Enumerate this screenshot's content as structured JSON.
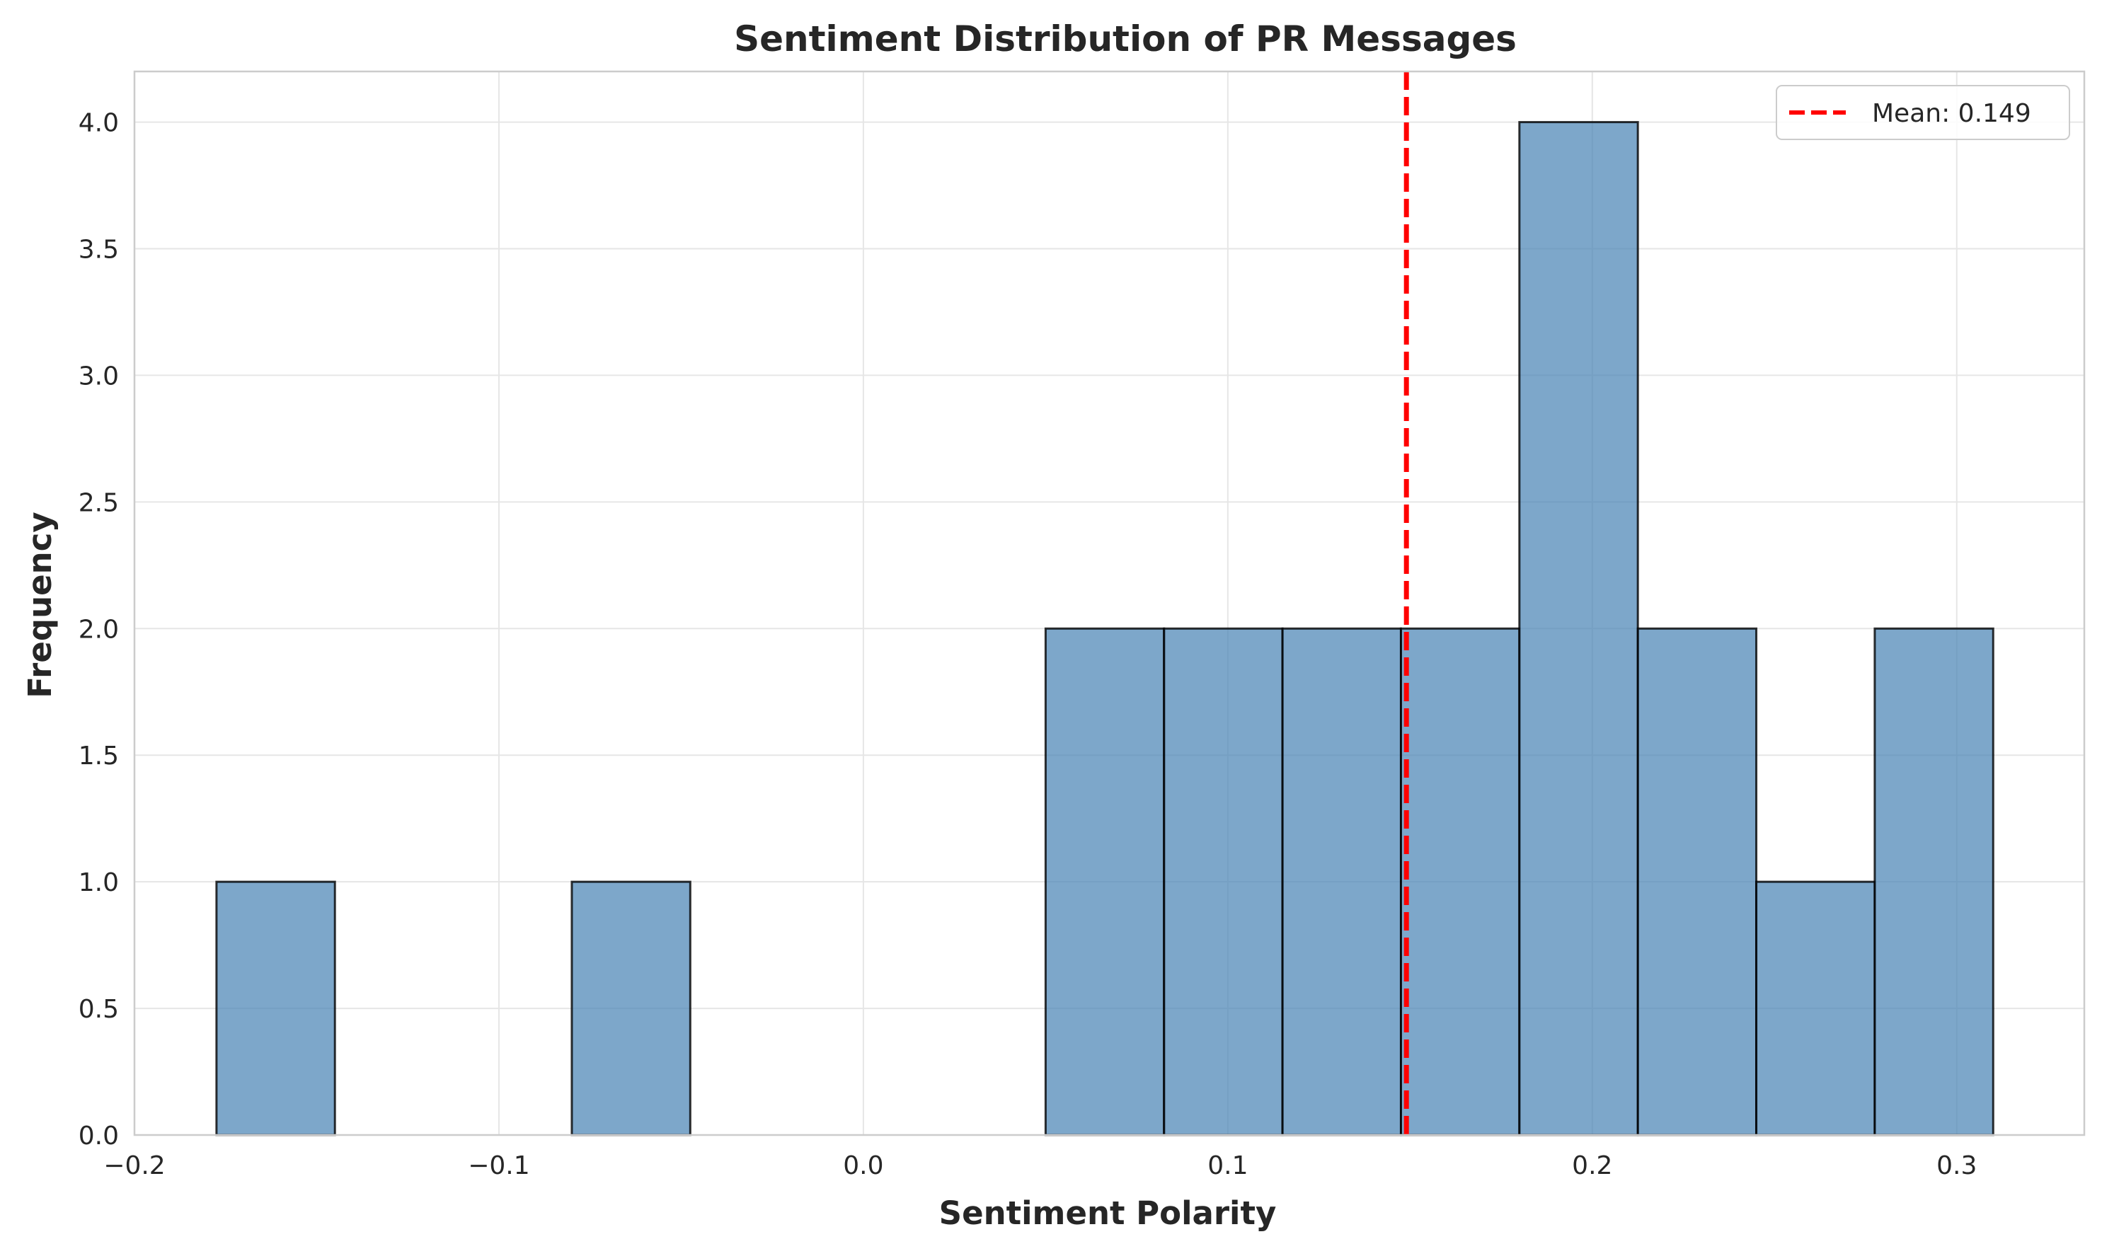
{
  "chart_data": {
    "type": "bar",
    "title": "Sentiment Distribution of PR Messages",
    "xlabel": "Sentiment Polarity",
    "ylabel": "Frequency",
    "xlim": [
      -0.2,
      0.335
    ],
    "ylim": [
      0,
      4.2
    ],
    "x_ticks": [
      -0.2,
      -0.1,
      0.0,
      0.1,
      0.2,
      0.3
    ],
    "x_tick_labels": [
      "−0.2",
      "−0.1",
      "0.0",
      "0.1",
      "0.2",
      "0.3"
    ],
    "y_ticks": [
      0,
      0.5,
      1.0,
      1.5,
      2.0,
      2.5,
      3.0,
      3.5,
      4.0
    ],
    "y_tick_labels": [
      "0.0",
      "0.5",
      "1.0",
      "1.5",
      "2.0",
      "2.5",
      "3.0",
      "3.5",
      "4.0"
    ],
    "bin_edges": [
      -0.1775,
      -0.145,
      -0.1125,
      -0.08,
      -0.0475,
      -0.015,
      0.0175,
      0.05,
      0.0825,
      0.115,
      0.1475,
      0.18,
      0.2125,
      0.245,
      0.2775,
      0.31
    ],
    "counts": [
      1,
      0,
      0,
      1,
      0,
      0,
      0,
      2,
      2,
      2,
      2,
      4,
      2,
      1,
      2
    ],
    "mean_line": {
      "value": 0.149,
      "label": "Mean: 0.149",
      "color": "#ff0000",
      "style": "dashed"
    },
    "bar_color": "#4682b4",
    "bar_edge_color": "#000000",
    "grid": true,
    "legend": {
      "placement": "top-right",
      "entries": [
        "Mean: 0.149"
      ]
    }
  }
}
